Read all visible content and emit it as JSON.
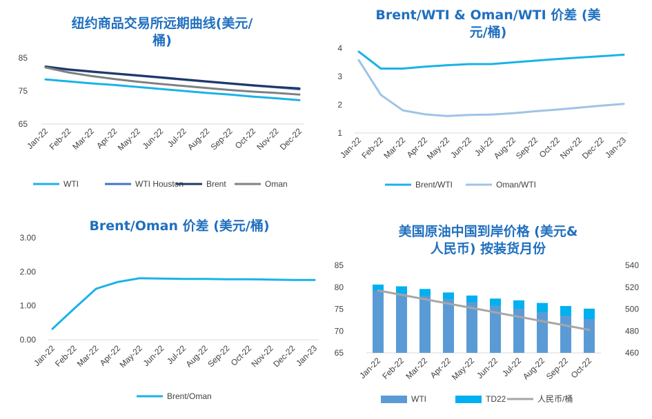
{
  "chart_data": [
    {
      "type": "line",
      "title": "纽约商品交易所远期曲线(美元/桶)",
      "title_lines": [
        "纽约商品交易所远期曲线(美元/",
        "桶)"
      ],
      "categories": [
        "Jan-22",
        "Feb-22",
        "Mar-22",
        "Apr-22",
        "May-22",
        "Jun-22",
        "Jul-22",
        "Aug-22",
        "Sep-22",
        "Oct-22",
        "Nov-22",
        "Dec-22"
      ],
      "ylim": [
        65,
        85
      ],
      "yticks": [
        65,
        75,
        85
      ],
      "grid": false,
      "legend_position": "bottom",
      "series": [
        {
          "name": "WTI",
          "color": "#1ab2e8",
          "width": 3,
          "values": [
            78.5,
            77.9,
            77.3,
            76.8,
            76.2,
            75.6,
            75.0,
            74.4,
            73.9,
            73.3,
            72.8,
            72.2
          ]
        },
        {
          "name": "WTI Houston",
          "color": "#4472c4",
          "width": 3,
          "values": [
            82.2,
            81.4,
            80.8,
            80.2,
            79.6,
            79.0,
            78.4,
            77.8,
            77.2,
            76.6,
            76.1,
            75.5
          ]
        },
        {
          "name": "Brent",
          "color": "#203864",
          "width": 3,
          "values": [
            82.4,
            81.5,
            80.9,
            80.3,
            79.7,
            79.1,
            78.5,
            77.9,
            77.3,
            76.7,
            76.2,
            75.8
          ]
        },
        {
          "name": "Oman",
          "color": "#808080",
          "width": 3,
          "values": [
            82.1,
            80.6,
            79.5,
            78.6,
            77.8,
            77.1,
            76.5,
            75.9,
            75.3,
            74.8,
            74.4,
            73.9
          ]
        }
      ]
    },
    {
      "type": "line",
      "title": "Brent/WTI & Oman/WTI 价差 (美元/桶)",
      "title_lines": [
        "Brent/WTI & Oman/WTI 价差 (美",
        "元/桶)"
      ],
      "categories": [
        "Jan-22",
        "Feb-22",
        "Mar-22",
        "Apr-22",
        "May-22",
        "Jun-22",
        "Jul-22",
        "Aug-22",
        "Sep-22",
        "Oct-22",
        "Nov-22",
        "Dec-22",
        "Jan-23"
      ],
      "ylim": [
        1,
        4
      ],
      "yticks": [
        1,
        2,
        3,
        4
      ],
      "grid": false,
      "legend_position": "bottom",
      "series": [
        {
          "name": "Brent/WTI",
          "color": "#1ab2e8",
          "width": 3,
          "values": [
            3.88,
            3.28,
            3.28,
            3.35,
            3.4,
            3.44,
            3.44,
            3.5,
            3.56,
            3.62,
            3.67,
            3.72,
            3.77
          ]
        },
        {
          "name": "Oman/WTI",
          "color": "#9dc3e6",
          "width": 3,
          "values": [
            3.58,
            2.35,
            1.8,
            1.66,
            1.6,
            1.64,
            1.65,
            1.7,
            1.77,
            1.83,
            1.9,
            1.97,
            2.03
          ]
        }
      ]
    },
    {
      "type": "line",
      "title": "Brent/Oman 价差 (美元/桶)",
      "title_lines": [
        "Brent/Oman 价差 (美元/桶)"
      ],
      "categories": [
        "Jan-22",
        "Feb-22",
        "Mar-22",
        "Apr-22",
        "May-22",
        "Jun-22",
        "Jul-22",
        "Aug-22",
        "Sep-22",
        "Oct-22",
        "Nov-22",
        "Dec-22",
        "Jan-23"
      ],
      "ylim": [
        0,
        3
      ],
      "yticks": [
        "0.00",
        "1.00",
        "2.00",
        "3.00"
      ],
      "grid": false,
      "legend_position": "bottom",
      "series": [
        {
          "name": "Brent/Oman",
          "color": "#1ab2e8",
          "width": 3,
          "values": [
            0.32,
            0.92,
            1.5,
            1.7,
            1.81,
            1.8,
            1.79,
            1.79,
            1.78,
            1.78,
            1.77,
            1.76,
            1.76
          ]
        }
      ]
    },
    {
      "type": "bar",
      "title": "美国原油中国到岸价格 (美元&人民币) 按装货月份",
      "title_lines": [
        "美国原油中国到岸价格 (美元&",
        "人民币) 按装货月份"
      ],
      "categories": [
        "Jan-22",
        "Feb-22",
        "Mar-22",
        "Apr-22",
        "May-22",
        "Jun-22",
        "Jul-22",
        "Aug-22",
        "Sep-22",
        "Oct-22"
      ],
      "ylim": [
        65,
        85
      ],
      "yticks": [
        65,
        70,
        75,
        80,
        85
      ],
      "y2lim": [
        460,
        540
      ],
      "y2ticks": [
        460,
        480,
        500,
        520,
        540
      ],
      "grid": false,
      "legend_position": "bottom",
      "series": [
        {
          "name": "WTI",
          "type": "bar",
          "color": "#5b9bd5",
          "values": [
            79.2,
            78.6,
            78.0,
            77.3,
            76.6,
            75.8,
            75.1,
            74.3,
            73.5,
            72.7
          ]
        },
        {
          "name": "TD22",
          "type": "bar",
          "color": "#00b0f0",
          "values": [
            80.6,
            80.2,
            79.6,
            78.8,
            78.1,
            77.4,
            77.0,
            76.4,
            75.7,
            75.1
          ]
        },
        {
          "name": "人民币/桶",
          "type": "line",
          "axis": "right",
          "color": "#a6a6a6",
          "values": [
            517,
            513,
            509,
            505,
            501,
            497,
            493,
            489,
            485,
            481
          ]
        }
      ]
    }
  ]
}
